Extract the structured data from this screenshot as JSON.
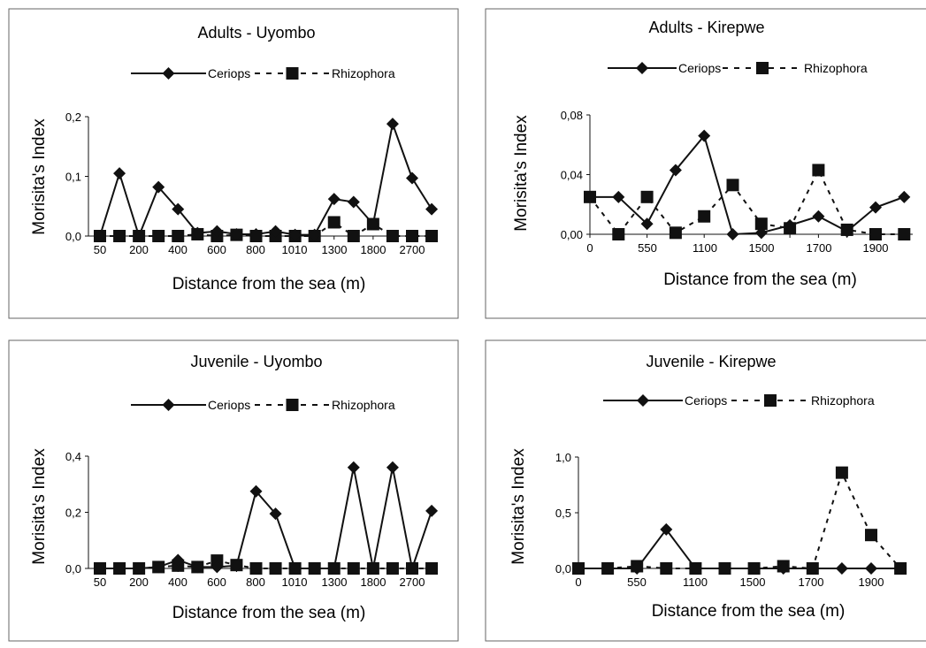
{
  "chart_data": [
    {
      "type": "line",
      "title": "Adults - Uyombo",
      "xlabel": "Distance from the sea (m)",
      "ylabel": "Morisita's Index",
      "x_tick_labels": [
        "50",
        "200",
        "400",
        "600",
        "800",
        "1010",
        "1300",
        "1800",
        "2700"
      ],
      "y_tick_labels": [
        "0,0",
        "0,1",
        "0,2"
      ],
      "ylim": [
        0,
        0.2
      ],
      "legend_position": "top",
      "series": [
        {
          "name": "Ceriops",
          "style": "solid",
          "marker": "diamond",
          "values": [
            0.0,
            0.105,
            0.0,
            0.082,
            0.045,
            0.005,
            0.008,
            0.003,
            0.003,
            0.008,
            0.002,
            0.002,
            0.062,
            0.057,
            0.02,
            0.188,
            0.097,
            0.045
          ]
        },
        {
          "name": "Rhizophora",
          "style": "dashed",
          "marker": "square",
          "values": [
            0.0,
            0.0,
            0.0,
            0.0,
            0.0,
            0.003,
            0.0,
            0.002,
            0.0,
            0.0,
            0.0,
            0.0,
            0.023,
            0.0,
            0.02,
            0.0,
            0.0,
            0.0
          ]
        }
      ]
    },
    {
      "type": "line",
      "title": "Adults - Kirepwe",
      "xlabel": "Distance from the sea (m)",
      "ylabel": "Morisita's Index",
      "x_tick_labels": [
        "0",
        "550",
        "1100",
        "1500",
        "1700",
        "1900"
      ],
      "y_tick_labels": [
        "0,00",
        "0,04",
        "0,08"
      ],
      "ylim": [
        0,
        0.08
      ],
      "legend_position": "top",
      "series": [
        {
          "name": "Ceriops",
          "style": "solid",
          "marker": "diamond",
          "values": [
            0.025,
            0.025,
            0.007,
            0.043,
            0.066,
            0.0,
            0.001,
            0.006,
            0.012,
            0.002,
            0.018,
            0.025
          ]
        },
        {
          "name": "Rhizophora",
          "style": "dashed",
          "marker": "square",
          "values": [
            0.025,
            0.0,
            0.025,
            0.001,
            0.012,
            0.033,
            0.007,
            0.004,
            0.043,
            0.003,
            0.0,
            0.0
          ]
        }
      ]
    },
    {
      "type": "line",
      "title": "Juvenile - Uyombo",
      "xlabel": "Distance from the sea (m)",
      "ylabel": "Morisita's Index",
      "x_tick_labels": [
        "50",
        "200",
        "400",
        "600",
        "800",
        "1010",
        "1300",
        "1800",
        "2700"
      ],
      "y_tick_labels": [
        "0,0",
        "0,2",
        "0,4"
      ],
      "ylim": [
        0,
        0.4
      ],
      "legend_position": "top",
      "series": [
        {
          "name": "Ceriops",
          "style": "solid",
          "marker": "diamond",
          "values": [
            0.0,
            0.0,
            0.0,
            0.005,
            0.03,
            0.005,
            0.005,
            0.01,
            0.275,
            0.195,
            0.0,
            0.0,
            0.0,
            0.36,
            0.0,
            0.36,
            0.0,
            0.205
          ]
        },
        {
          "name": "Rhizophora",
          "style": "dashed",
          "marker": "square",
          "values": [
            0.0,
            0.0,
            0.0,
            0.005,
            0.01,
            0.005,
            0.028,
            0.012,
            0.0,
            0.0,
            0.0,
            0.0,
            0.0,
            0.0,
            0.0,
            0.0,
            0.0,
            0.0
          ]
        }
      ]
    },
    {
      "type": "line",
      "title": "Juvenile - Kirepwe",
      "xlabel": "Distance from the sea (m)",
      "ylabel": "Morisita's Index",
      "x_tick_labels": [
        "0",
        "550",
        "1100",
        "1500",
        "1700",
        "1900"
      ],
      "y_tick_labels": [
        "0,0",
        "0,5",
        "1,0"
      ],
      "ylim": [
        0,
        1.0
      ],
      "legend_position": "top",
      "series": [
        {
          "name": "Ceriops",
          "style": "solid",
          "marker": "diamond",
          "values": [
            0.0,
            0.0,
            0.0,
            0.35,
            0.0,
            0.0,
            0.0,
            0.0,
            0.0,
            0.0,
            0.0,
            0.0
          ]
        },
        {
          "name": "Rhizophora",
          "style": "dashed",
          "marker": "square",
          "values": [
            0.0,
            0.0,
            0.02,
            0.0,
            0.0,
            0.0,
            0.0,
            0.02,
            0.0,
            0.86,
            0.3,
            0.0
          ]
        }
      ]
    }
  ]
}
